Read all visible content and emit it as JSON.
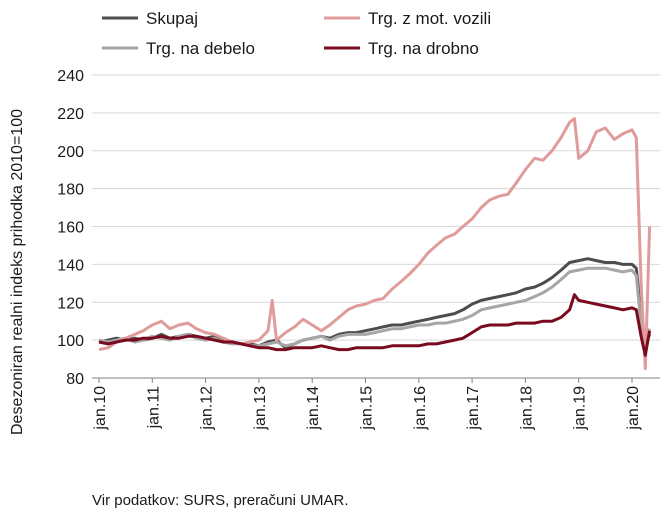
{
  "chart_data": {
    "type": "line",
    "ylabel": "Desezoniran realni indeks prihodka 2010=100",
    "xlabel": "",
    "title": "",
    "ylim": [
      80,
      240
    ],
    "yticks": [
      80,
      100,
      120,
      140,
      160,
      180,
      200,
      220,
      240
    ],
    "xlim": [
      2010.0,
      2020.5
    ],
    "xticks": [
      {
        "x": 2010,
        "label": "jan.10"
      },
      {
        "x": 2011,
        "label": "jan.11"
      },
      {
        "x": 2012,
        "label": "jan.12"
      },
      {
        "x": 2013,
        "label": "jan.13"
      },
      {
        "x": 2014,
        "label": "jan.14"
      },
      {
        "x": 2015,
        "label": "jan.15"
      },
      {
        "x": 2016,
        "label": "jan.16"
      },
      {
        "x": 2017,
        "label": "jan.17"
      },
      {
        "x": 2018,
        "label": "jan.18"
      },
      {
        "x": 2019,
        "label": "jan.19"
      },
      {
        "x": 2020,
        "label": "jan.20"
      }
    ],
    "grid": "horizontal",
    "legend_position": "top",
    "series": [
      {
        "name": "Skupaj",
        "color": "#4d4d4d",
        "points": [
          [
            2010.0,
            99
          ],
          [
            2010.17,
            100
          ],
          [
            2010.33,
            101
          ],
          [
            2010.5,
            100
          ],
          [
            2010.67,
            101
          ],
          [
            2010.83,
            100
          ],
          [
            2011.0,
            101
          ],
          [
            2011.17,
            103
          ],
          [
            2011.33,
            101
          ],
          [
            2011.5,
            102
          ],
          [
            2011.67,
            103
          ],
          [
            2011.83,
            102
          ],
          [
            2012.0,
            101
          ],
          [
            2012.17,
            102
          ],
          [
            2012.33,
            100
          ],
          [
            2012.5,
            99
          ],
          [
            2012.67,
            98
          ],
          [
            2012.83,
            98
          ],
          [
            2013.0,
            97
          ],
          [
            2013.17,
            99
          ],
          [
            2013.33,
            100
          ],
          [
            2013.5,
            96
          ],
          [
            2013.67,
            98
          ],
          [
            2013.83,
            100
          ],
          [
            2014.0,
            101
          ],
          [
            2014.17,
            102
          ],
          [
            2014.33,
            101
          ],
          [
            2014.5,
            103
          ],
          [
            2014.67,
            104
          ],
          [
            2014.83,
            104
          ],
          [
            2015.0,
            105
          ],
          [
            2015.17,
            106
          ],
          [
            2015.33,
            107
          ],
          [
            2015.5,
            108
          ],
          [
            2015.67,
            108
          ],
          [
            2015.83,
            109
          ],
          [
            2016.0,
            110
          ],
          [
            2016.17,
            111
          ],
          [
            2016.33,
            112
          ],
          [
            2016.5,
            113
          ],
          [
            2016.67,
            114
          ],
          [
            2016.83,
            116
          ],
          [
            2017.0,
            119
          ],
          [
            2017.17,
            121
          ],
          [
            2017.33,
            122
          ],
          [
            2017.5,
            123
          ],
          [
            2017.67,
            124
          ],
          [
            2017.83,
            125
          ],
          [
            2018.0,
            127
          ],
          [
            2018.17,
            128
          ],
          [
            2018.33,
            130
          ],
          [
            2018.5,
            133
          ],
          [
            2018.67,
            137
          ],
          [
            2018.83,
            141
          ],
          [
            2019.0,
            142
          ],
          [
            2019.17,
            143
          ],
          [
            2019.33,
            142
          ],
          [
            2019.5,
            141
          ],
          [
            2019.67,
            141
          ],
          [
            2019.83,
            140
          ],
          [
            2020.0,
            140
          ],
          [
            2020.08,
            138
          ],
          [
            2020.17,
            112
          ],
          [
            2020.25,
            97
          ],
          [
            2020.33,
            103
          ]
        ]
      },
      {
        "name": "Trg. na debelo",
        "color": "#a6a6a6",
        "points": [
          [
            2010.0,
            100
          ],
          [
            2010.17,
            99
          ],
          [
            2010.33,
            100
          ],
          [
            2010.5,
            101
          ],
          [
            2010.67,
            99
          ],
          [
            2010.83,
            100
          ],
          [
            2011.0,
            102
          ],
          [
            2011.17,
            101
          ],
          [
            2011.33,
            100
          ],
          [
            2011.5,
            102
          ],
          [
            2011.67,
            103
          ],
          [
            2011.83,
            101
          ],
          [
            2012.0,
            100
          ],
          [
            2012.17,
            101
          ],
          [
            2012.33,
            99
          ],
          [
            2012.5,
            98
          ],
          [
            2012.67,
            98
          ],
          [
            2012.83,
            97
          ],
          [
            2013.0,
            97
          ],
          [
            2013.17,
            98
          ],
          [
            2013.33,
            99
          ],
          [
            2013.5,
            97
          ],
          [
            2013.67,
            98
          ],
          [
            2013.83,
            100
          ],
          [
            2014.0,
            101
          ],
          [
            2014.17,
            102
          ],
          [
            2014.33,
            100
          ],
          [
            2014.5,
            102
          ],
          [
            2014.67,
            103
          ],
          [
            2014.83,
            103
          ],
          [
            2015.0,
            103
          ],
          [
            2015.17,
            104
          ],
          [
            2015.33,
            105
          ],
          [
            2015.5,
            106
          ],
          [
            2015.67,
            106
          ],
          [
            2015.83,
            107
          ],
          [
            2016.0,
            108
          ],
          [
            2016.17,
            108
          ],
          [
            2016.33,
            109
          ],
          [
            2016.5,
            109
          ],
          [
            2016.67,
            110
          ],
          [
            2016.83,
            111
          ],
          [
            2017.0,
            113
          ],
          [
            2017.17,
            116
          ],
          [
            2017.33,
            117
          ],
          [
            2017.5,
            118
          ],
          [
            2017.67,
            119
          ],
          [
            2017.83,
            120
          ],
          [
            2018.0,
            121
          ],
          [
            2018.17,
            123
          ],
          [
            2018.33,
            125
          ],
          [
            2018.5,
            128
          ],
          [
            2018.67,
            132
          ],
          [
            2018.83,
            136
          ],
          [
            2019.0,
            137
          ],
          [
            2019.17,
            138
          ],
          [
            2019.33,
            138
          ],
          [
            2019.5,
            138
          ],
          [
            2019.67,
            137
          ],
          [
            2019.83,
            136
          ],
          [
            2020.0,
            137
          ],
          [
            2020.08,
            134
          ],
          [
            2020.17,
            108
          ],
          [
            2020.25,
            101
          ],
          [
            2020.33,
            106
          ]
        ]
      },
      {
        "name": "Trg. z mot. vozili",
        "color": "#e09b9b",
        "points": [
          [
            2010.0,
            95
          ],
          [
            2010.17,
            96
          ],
          [
            2010.33,
            99
          ],
          [
            2010.5,
            101
          ],
          [
            2010.67,
            103
          ],
          [
            2010.83,
            105
          ],
          [
            2011.0,
            108
          ],
          [
            2011.17,
            110
          ],
          [
            2011.33,
            106
          ],
          [
            2011.5,
            108
          ],
          [
            2011.67,
            109
          ],
          [
            2011.83,
            106
          ],
          [
            2012.0,
            104
          ],
          [
            2012.17,
            103
          ],
          [
            2012.33,
            101
          ],
          [
            2012.5,
            99
          ],
          [
            2012.67,
            98
          ],
          [
            2012.83,
            99
          ],
          [
            2013.0,
            100
          ],
          [
            2013.17,
            105
          ],
          [
            2013.25,
            121
          ],
          [
            2013.33,
            100
          ],
          [
            2013.5,
            104
          ],
          [
            2013.67,
            107
          ],
          [
            2013.83,
            111
          ],
          [
            2014.0,
            108
          ],
          [
            2014.17,
            105
          ],
          [
            2014.33,
            108
          ],
          [
            2014.5,
            112
          ],
          [
            2014.67,
            116
          ],
          [
            2014.83,
            118
          ],
          [
            2015.0,
            119
          ],
          [
            2015.17,
            121
          ],
          [
            2015.33,
            122
          ],
          [
            2015.5,
            127
          ],
          [
            2015.67,
            131
          ],
          [
            2015.83,
            135
          ],
          [
            2016.0,
            140
          ],
          [
            2016.17,
            146
          ],
          [
            2016.33,
            150
          ],
          [
            2016.5,
            154
          ],
          [
            2016.67,
            156
          ],
          [
            2016.83,
            160
          ],
          [
            2017.0,
            164
          ],
          [
            2017.17,
            170
          ],
          [
            2017.33,
            174
          ],
          [
            2017.5,
            176
          ],
          [
            2017.67,
            177
          ],
          [
            2017.83,
            183
          ],
          [
            2018.0,
            190
          ],
          [
            2018.17,
            196
          ],
          [
            2018.33,
            195
          ],
          [
            2018.5,
            200
          ],
          [
            2018.67,
            207
          ],
          [
            2018.83,
            215
          ],
          [
            2018.92,
            217
          ],
          [
            2019.0,
            196
          ],
          [
            2019.17,
            200
          ],
          [
            2019.33,
            210
          ],
          [
            2019.5,
            212
          ],
          [
            2019.67,
            206
          ],
          [
            2019.83,
            209
          ],
          [
            2020.0,
            211
          ],
          [
            2020.08,
            207
          ],
          [
            2020.17,
            130
          ],
          [
            2020.25,
            85
          ],
          [
            2020.33,
            160
          ]
        ]
      },
      {
        "name": "Trg. na drobno",
        "color": "#7a0a1e",
        "points": [
          [
            2010.0,
            99
          ],
          [
            2010.17,
            98
          ],
          [
            2010.33,
            99
          ],
          [
            2010.5,
            100
          ],
          [
            2010.67,
            100
          ],
          [
            2010.83,
            101
          ],
          [
            2011.0,
            101
          ],
          [
            2011.17,
            102
          ],
          [
            2011.33,
            101
          ],
          [
            2011.5,
            101
          ],
          [
            2011.67,
            102
          ],
          [
            2011.83,
            102
          ],
          [
            2012.0,
            101
          ],
          [
            2012.17,
            100
          ],
          [
            2012.33,
            99
          ],
          [
            2012.5,
            99
          ],
          [
            2012.67,
            98
          ],
          [
            2012.83,
            97
          ],
          [
            2013.0,
            96
          ],
          [
            2013.17,
            96
          ],
          [
            2013.33,
            95
          ],
          [
            2013.5,
            95
          ],
          [
            2013.67,
            96
          ],
          [
            2013.83,
            96
          ],
          [
            2014.0,
            96
          ],
          [
            2014.17,
            97
          ],
          [
            2014.33,
            96
          ],
          [
            2014.5,
            95
          ],
          [
            2014.67,
            95
          ],
          [
            2014.83,
            96
          ],
          [
            2015.0,
            96
          ],
          [
            2015.17,
            96
          ],
          [
            2015.33,
            96
          ],
          [
            2015.5,
            97
          ],
          [
            2015.67,
            97
          ],
          [
            2015.83,
            97
          ],
          [
            2016.0,
            97
          ],
          [
            2016.17,
            98
          ],
          [
            2016.33,
            98
          ],
          [
            2016.5,
            99
          ],
          [
            2016.67,
            100
          ],
          [
            2016.83,
            101
          ],
          [
            2017.0,
            104
          ],
          [
            2017.17,
            107
          ],
          [
            2017.33,
            108
          ],
          [
            2017.5,
            108
          ],
          [
            2017.67,
            108
          ],
          [
            2017.83,
            109
          ],
          [
            2018.0,
            109
          ],
          [
            2018.17,
            109
          ],
          [
            2018.33,
            110
          ],
          [
            2018.5,
            110
          ],
          [
            2018.67,
            112
          ],
          [
            2018.83,
            116
          ],
          [
            2018.92,
            124
          ],
          [
            2019.0,
            121
          ],
          [
            2019.17,
            120
          ],
          [
            2019.33,
            119
          ],
          [
            2019.5,
            118
          ],
          [
            2019.67,
            117
          ],
          [
            2019.83,
            116
          ],
          [
            2020.0,
            117
          ],
          [
            2020.08,
            116
          ],
          [
            2020.17,
            102
          ],
          [
            2020.25,
            92
          ],
          [
            2020.33,
            105
          ]
        ]
      }
    ]
  },
  "source_note": "Vir podatkov: SURS, preračuni UMAR."
}
